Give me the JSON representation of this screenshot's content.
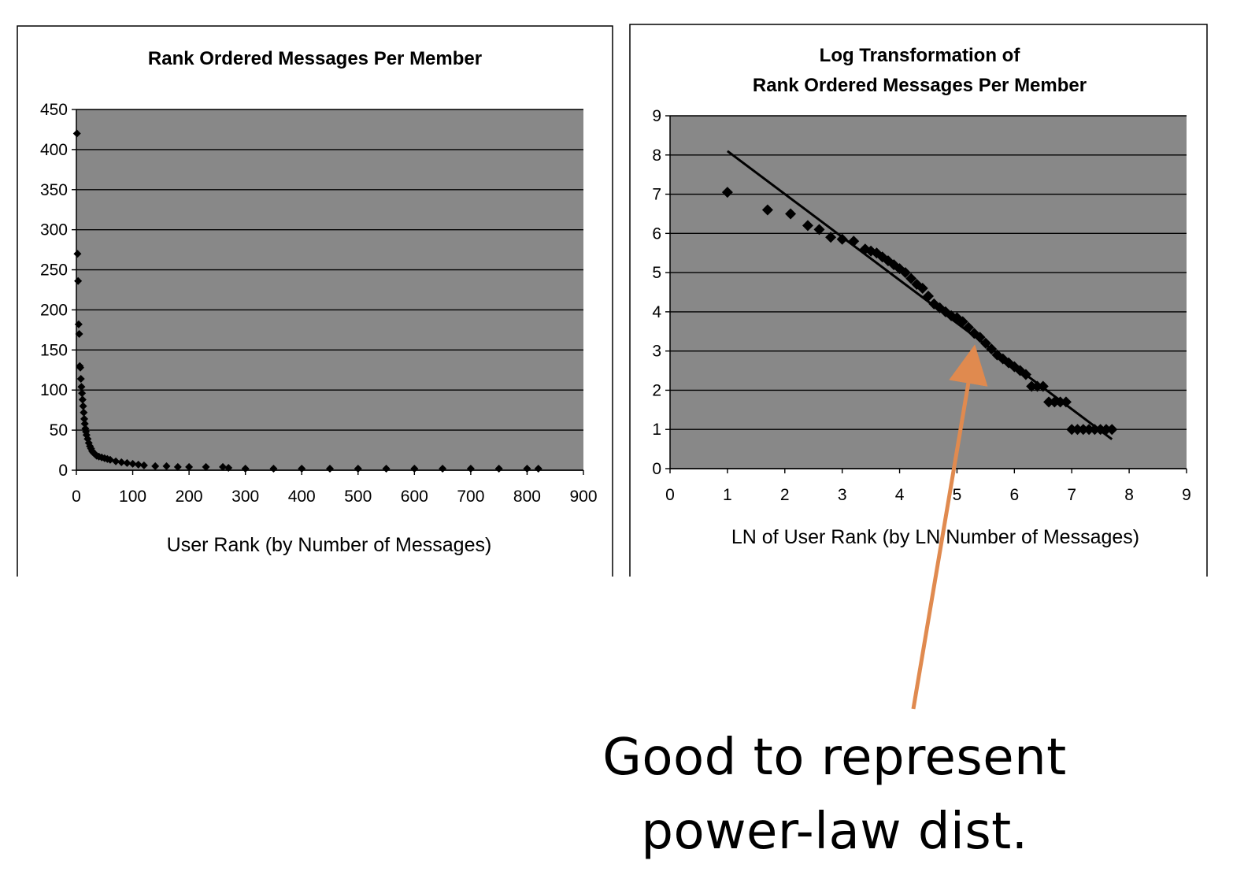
{
  "annotation": {
    "line1": "Good to represent",
    "line2": "power-law dist.",
    "arrow_color": "#E08A4F"
  },
  "colors": {
    "plot_bg": "#888888",
    "gridline": "#000000",
    "marker": "#000000"
  },
  "chart_data": [
    {
      "type": "scatter",
      "title": "Rank Ordered Messages Per Member",
      "xlabel": "User Rank (by Number of Messages)",
      "ylabel": "",
      "xlim": [
        0,
        900
      ],
      "ylim": [
        0,
        450
      ],
      "x_ticks": [
        "0",
        "100",
        "200",
        "300",
        "400",
        "500",
        "600",
        "700",
        "800",
        "900"
      ],
      "y_ticks": [
        "0",
        "50",
        "100",
        "150",
        "200",
        "250",
        "300",
        "350",
        "400",
        "450"
      ],
      "grid": true,
      "legend": "none",
      "series": [
        {
          "x": [
            1,
            2,
            3,
            4,
            5,
            6,
            7,
            8,
            9,
            10,
            11,
            12,
            13,
            14,
            15,
            16,
            17,
            18,
            20,
            22,
            24,
            26,
            28,
            30,
            33,
            36,
            40,
            45,
            50,
            55,
            60,
            70,
            80,
            90,
            100,
            110,
            120,
            140,
            160,
            180,
            200,
            230,
            260,
            270,
            300,
            350,
            400,
            450,
            500,
            550,
            600,
            650,
            700,
            750,
            800,
            820
          ],
          "values": [
            420,
            270,
            236,
            182,
            170,
            130,
            128,
            114,
            104,
            96,
            88,
            80,
            72,
            64,
            58,
            52,
            48,
            44,
            39,
            34,
            30,
            27,
            24,
            22,
            20,
            18,
            17,
            16,
            15,
            14,
            13,
            11,
            10,
            9,
            8,
            7,
            6,
            5,
            5,
            4,
            4,
            4,
            4,
            3,
            2,
            2,
            2,
            2,
            2,
            2,
            2,
            2,
            2,
            2,
            2,
            2
          ]
        }
      ]
    },
    {
      "type": "scatter",
      "title": "Log Transformation of Rank Ordered Messages Per Member",
      "title_lines": [
        "Log Transformation of",
        "Rank Ordered Messages Per Member"
      ],
      "xlabel": "LN of User Rank (by LN Number of Messages)",
      "ylabel": "",
      "xlim": [
        0,
        9
      ],
      "ylim": [
        0,
        9
      ],
      "x_ticks": [
        "0",
        "1",
        "2",
        "3",
        "4",
        "5",
        "6",
        "7",
        "8",
        "9"
      ],
      "y_ticks": [
        "0",
        "1",
        "2",
        "3",
        "4",
        "5",
        "6",
        "7",
        "8",
        "9"
      ],
      "grid": true,
      "legend": "none",
      "trendline": {
        "x": [
          1.0,
          7.7
        ],
        "y": [
          8.1,
          0.75
        ]
      },
      "series": [
        {
          "x": [
            1.0,
            1.7,
            2.1,
            2.4,
            2.6,
            2.8,
            3.0,
            3.2,
            3.4,
            3.5,
            3.6,
            3.7,
            3.8,
            3.9,
            4.0,
            4.1,
            4.2,
            4.3,
            4.4,
            4.5,
            4.6,
            4.7,
            4.8,
            4.9,
            5.0,
            5.1,
            5.2,
            5.3,
            5.4,
            5.5,
            5.6,
            5.7,
            5.8,
            5.9,
            6.0,
            6.1,
            6.2,
            6.3,
            6.4,
            6.5,
            6.6,
            6.7,
            6.8,
            6.9,
            7.0,
            7.1,
            7.2,
            7.3,
            7.4,
            7.5,
            7.6,
            7.7
          ],
          "values": [
            7.05,
            6.6,
            6.5,
            6.2,
            6.1,
            5.9,
            5.85,
            5.8,
            5.6,
            5.55,
            5.5,
            5.4,
            5.3,
            5.2,
            5.1,
            5.0,
            4.85,
            4.7,
            4.6,
            4.4,
            4.2,
            4.1,
            4.0,
            3.9,
            3.85,
            3.75,
            3.6,
            3.45,
            3.35,
            3.2,
            3.05,
            2.9,
            2.8,
            2.7,
            2.6,
            2.5,
            2.4,
            2.1,
            2.1,
            2.1,
            1.7,
            1.7,
            1.7,
            1.7,
            1.0,
            1.0,
            1.0,
            1.0,
            1.0,
            1.0,
            1.0,
            1.0
          ]
        }
      ]
    }
  ]
}
